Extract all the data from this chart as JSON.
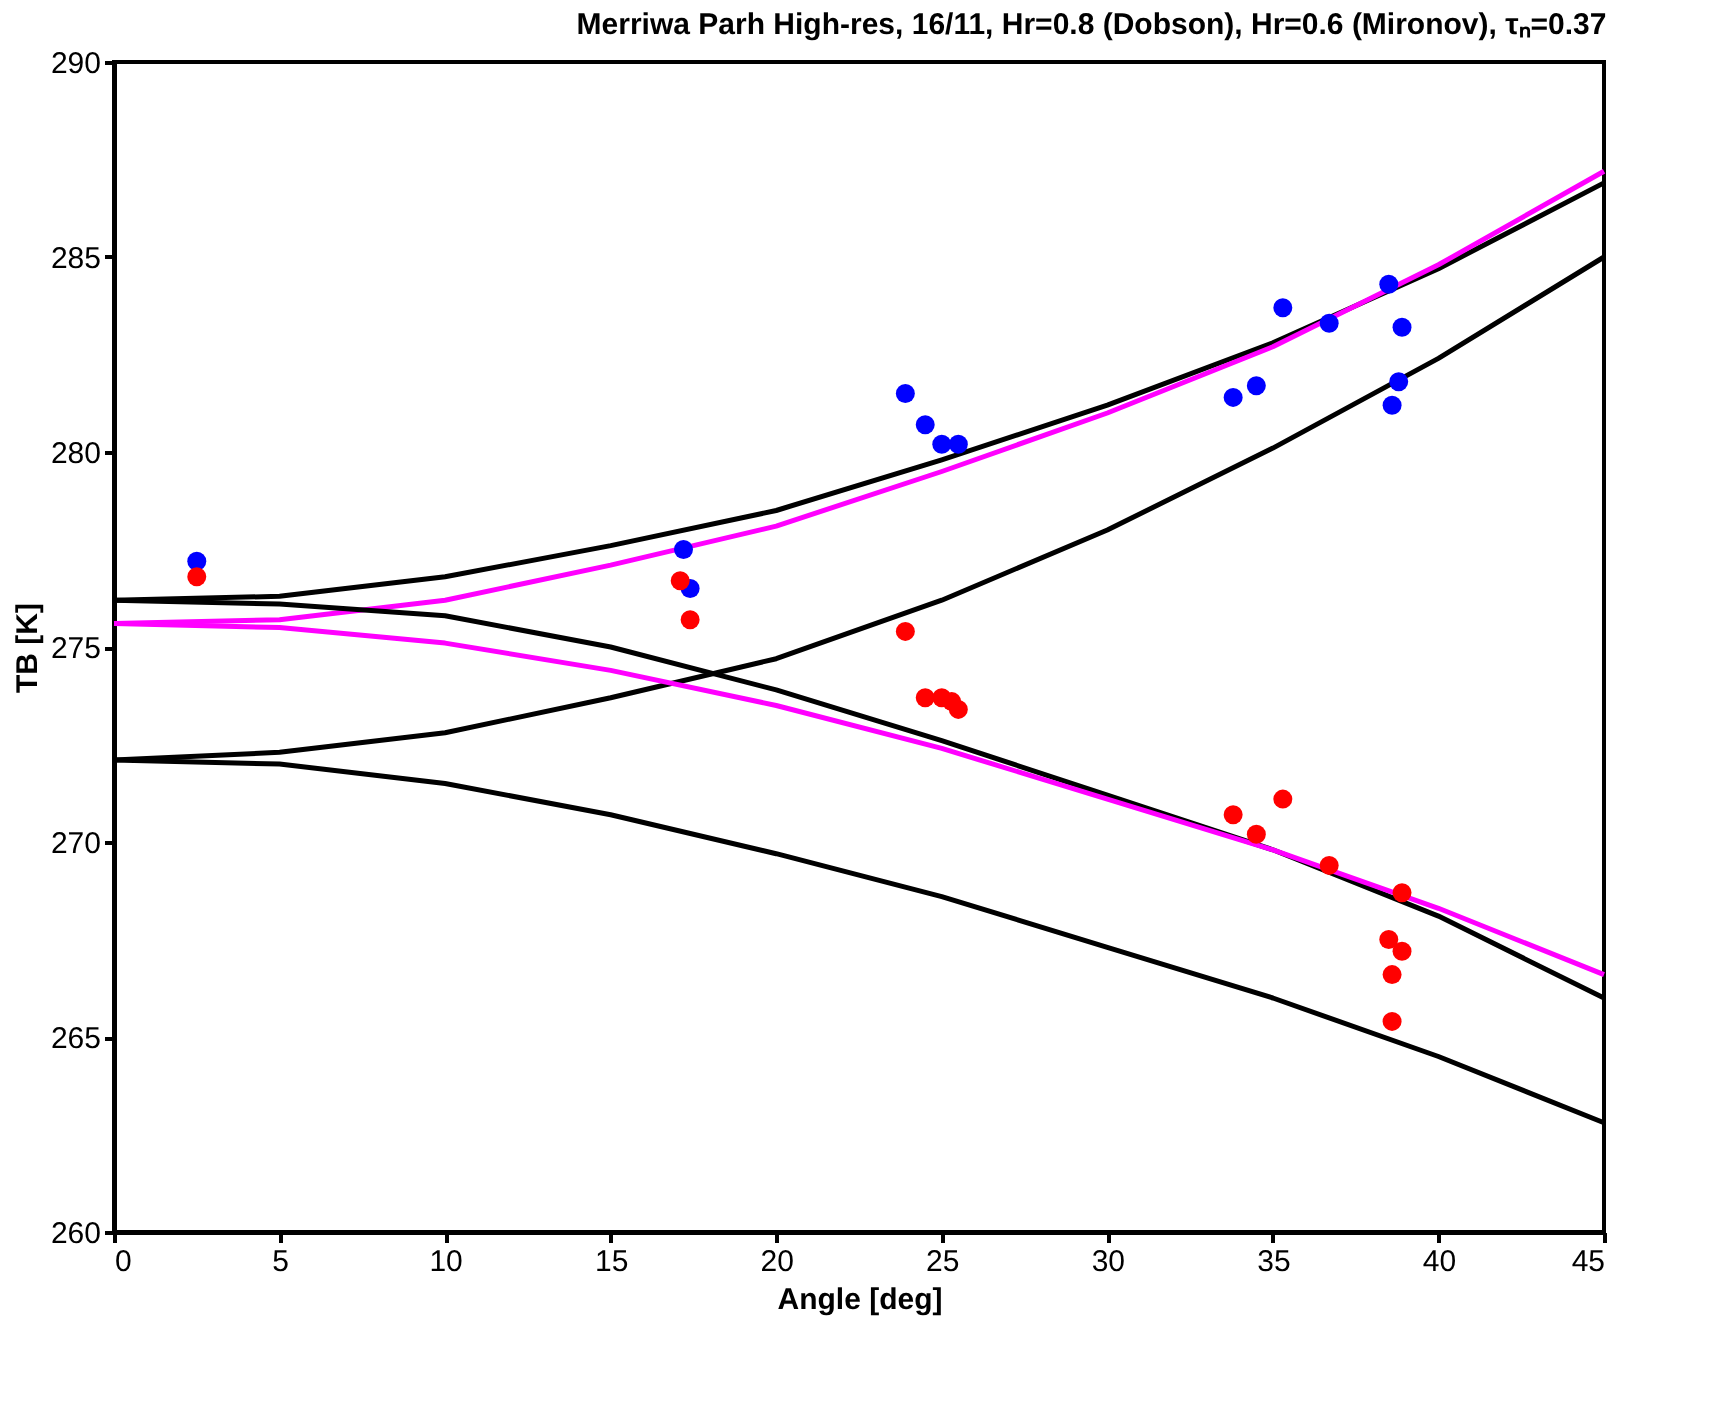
{
  "chart_data": {
    "type": "line",
    "title": "Merriwa Parh High-res, 16/11, Hr=0.8 (Dobson), Hr=0.6 (Mironov), τₙ=0.37",
    "xlabel": "Angle [deg]",
    "ylabel": "TB [K]",
    "xlim": [
      0,
      45
    ],
    "xticks": [
      0,
      5,
      10,
      15,
      20,
      25,
      30,
      35,
      40,
      45
    ],
    "ylim": [
      260,
      290
    ],
    "yticks": [
      260,
      265,
      270,
      275,
      280,
      285,
      290
    ],
    "grid": false,
    "line_style": "solid",
    "series": [
      {
        "color": "#000000",
        "x": [
          0,
          5,
          10,
          15,
          20,
          25,
          30,
          35,
          40,
          45
        ],
        "values": [
          276.2,
          276.3,
          276.8,
          277.6,
          278.5,
          279.8,
          281.2,
          282.8,
          284.7,
          286.9
        ]
      },
      {
        "color": "#ff00ff",
        "x": [
          0,
          5,
          10,
          15,
          20,
          25,
          30,
          35,
          40,
          45
        ],
        "values": [
          275.6,
          275.7,
          276.2,
          277.1,
          278.1,
          279.5,
          281.0,
          282.7,
          284.8,
          287.2
        ]
      },
      {
        "color": "#000000",
        "x": [
          0,
          5,
          10,
          15,
          20,
          25,
          30,
          35,
          40,
          45
        ],
        "values": [
          272.1,
          272.3,
          272.8,
          273.7,
          274.7,
          276.2,
          278.0,
          280.1,
          282.4,
          285.0
        ]
      },
      {
        "color": "#000000",
        "x": [
          0,
          5,
          10,
          15,
          20,
          25,
          30,
          35,
          40,
          45
        ],
        "values": [
          276.2,
          276.1,
          275.8,
          275.0,
          273.9,
          272.6,
          271.2,
          269.8,
          268.1,
          266.0
        ]
      },
      {
        "color": "#ff00ff",
        "x": [
          0,
          5,
          10,
          15,
          20,
          25,
          30,
          35,
          40,
          45
        ],
        "values": [
          275.6,
          275.5,
          275.1,
          274.4,
          273.5,
          272.4,
          271.1,
          269.8,
          268.3,
          266.6
        ]
      },
      {
        "color": "#000000",
        "x": [
          0,
          5,
          10,
          15,
          20,
          25,
          30,
          35,
          40,
          45
        ],
        "values": [
          272.1,
          272.0,
          271.5,
          270.7,
          269.7,
          268.6,
          267.3,
          266.0,
          264.5,
          262.8
        ]
      },
      {
        "type": "scatter",
        "marker": "circle",
        "color": "#0000ff",
        "x": [
          2.5,
          17.2,
          17.4,
          23.9,
          24.5,
          25.0,
          25.5,
          33.8,
          34.5,
          35.3,
          36.7,
          38.5,
          38.9,
          38.8,
          38.6
        ],
        "values": [
          277.2,
          277.5,
          276.5,
          281.5,
          280.7,
          280.2,
          280.2,
          281.4,
          281.7,
          283.7,
          283.3,
          284.3,
          283.2,
          281.8,
          281.2
        ]
      },
      {
        "type": "scatter",
        "marker": "circle",
        "color": "#ff0000",
        "x": [
          2.5,
          17.1,
          17.4,
          23.9,
          24.5,
          25.0,
          25.3,
          25.5,
          33.8,
          34.5,
          35.3,
          36.7,
          38.9,
          38.5,
          38.9,
          38.6,
          38.6
        ],
        "values": [
          276.8,
          276.7,
          275.7,
          275.4,
          273.7,
          273.7,
          273.6,
          273.4,
          270.7,
          270.2,
          271.1,
          269.4,
          268.7,
          267.5,
          267.2,
          266.6,
          265.4
        ]
      }
    ]
  }
}
